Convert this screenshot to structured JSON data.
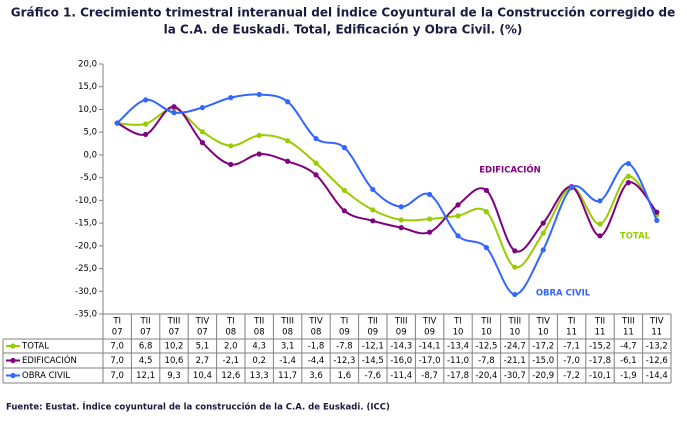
{
  "chart_data": {
    "type": "line",
    "title": [
      "Gráfico 1. Crecimiento trimestral interanual del Índice Coyuntural de la Construcción corregido de",
      "la C.A. de Euskadi. Total, Edificación y Obra Civil. (%)"
    ],
    "source": "Fuente: Eustat. Índice coyuntural de la construcción de la C.A. de Euskadi. (ICC)",
    "categories": [
      [
        "TI",
        "07"
      ],
      [
        "TII",
        "07"
      ],
      [
        "TIII",
        "07"
      ],
      [
        "TIV",
        "07"
      ],
      [
        "TI",
        "08"
      ],
      [
        "TII",
        "08"
      ],
      [
        "TIII",
        "08"
      ],
      [
        "TIV",
        "08"
      ],
      [
        "TI",
        "09"
      ],
      [
        "TII",
        "09"
      ],
      [
        "TIII",
        "09"
      ],
      [
        "TIV",
        "09"
      ],
      [
        "TI",
        "10"
      ],
      [
        "TII",
        "10"
      ],
      [
        "TIII",
        "10"
      ],
      [
        "TIV",
        "10"
      ],
      [
        "TI",
        "11"
      ],
      [
        "TII",
        "11"
      ],
      [
        "TIII",
        "11"
      ],
      [
        "TIV",
        "11"
      ]
    ],
    "series": [
      {
        "name": "TOTAL",
        "color": "#99cc00",
        "values": [
          7.0,
          6.8,
          10.2,
          5.1,
          2.0,
          4.3,
          3.1,
          -1.8,
          -7.8,
          -12.1,
          -14.3,
          -14.1,
          -13.4,
          -12.5,
          -24.7,
          -17.2,
          -7.1,
          -15.2,
          -4.7,
          -13.2
        ],
        "value_labels": [
          "7,0",
          "6,8",
          "10,2",
          "5,1",
          "2,0",
          "4,3",
          "3,1",
          "-1,8",
          "-7,8",
          "-12,1",
          "-14,3",
          "-14,1",
          "-13,4",
          "-12,5",
          "-24,7",
          "-17,2",
          "-7,1",
          "-15,2",
          "-4,7",
          "-13,2"
        ]
      },
      {
        "name": "EDIFICACIÓN",
        "color": "#800080",
        "values": [
          7.0,
          4.5,
          10.6,
          2.7,
          -2.1,
          0.2,
          -1.4,
          -4.4,
          -12.3,
          -14.5,
          -16.0,
          -17.0,
          -11.0,
          -7.8,
          -21.1,
          -15.0,
          -7.0,
          -17.8,
          -6.1,
          -12.6
        ],
        "value_labels": [
          "7,0",
          "4,5",
          "10,6",
          "2,7",
          "-2,1",
          "0,2",
          "-1,4",
          "-4,4",
          "-12,3",
          "-14,5",
          "-16,0",
          "-17,0",
          "-11,0",
          "-7,8",
          "-21,1",
          "-15,0",
          "-7,0",
          "-17,8",
          "-6,1",
          "-12,6"
        ]
      },
      {
        "name": "OBRA CIVIL",
        "color": "#3366ff",
        "values": [
          7.0,
          12.1,
          9.3,
          10.4,
          12.6,
          13.3,
          11.7,
          3.6,
          1.6,
          -7.6,
          -11.4,
          -8.7,
          -17.8,
          -20.4,
          -30.7,
          -20.9,
          -7.2,
          -10.1,
          -1.9,
          -14.4
        ],
        "value_labels": [
          "7,0",
          "12,1",
          "9,3",
          "10,4",
          "12,6",
          "13,3",
          "11,7",
          "3,6",
          "1,6",
          "-7,6",
          "-11,4",
          "-8,7",
          "-17,8",
          "-20,4",
          "-30,7",
          "-20,9",
          "-7,2",
          "-10,1",
          "-1,9",
          "-14,4"
        ]
      }
    ],
    "annotations": [
      {
        "text": "EDIFICACIÓN",
        "series": 1
      },
      {
        "text": "TOTAL",
        "series": 0
      },
      {
        "text": "OBRA CIVIL",
        "series": 2
      }
    ],
    "ylim": [
      -35,
      20
    ],
    "yticks": [
      {
        "value": -35,
        "label": "-35,0"
      },
      {
        "value": -30,
        "label": "-30,0"
      },
      {
        "value": -25,
        "label": "-25,0"
      },
      {
        "value": -20,
        "label": "-20,0"
      },
      {
        "value": -15,
        "label": "-15,0"
      },
      {
        "value": -10,
        "label": "-10,0"
      },
      {
        "value": -5,
        "label": "-5,0"
      },
      {
        "value": 0,
        "label": "0,0"
      },
      {
        "value": 5,
        "label": "5,0"
      },
      {
        "value": 10,
        "label": "10,0"
      },
      {
        "value": 15,
        "label": "15,0"
      },
      {
        "value": 20,
        "label": "20,0"
      }
    ],
    "grid": false
  }
}
